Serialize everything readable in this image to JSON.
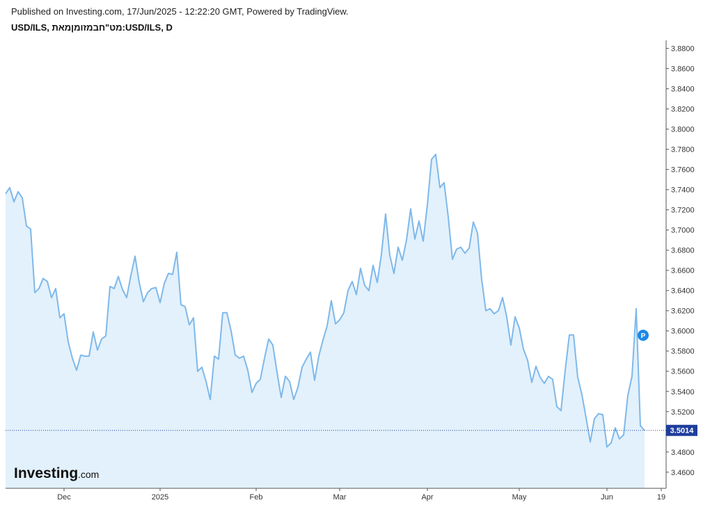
{
  "header": {
    "published": "Published on Investing.com, 17/Jun/2025 - 12:22:20 GMT, Powered by TradingView.",
    "symbol": "USD/ILS, מט\"חבמזומןמאת:USD/ILS, D"
  },
  "logo": {
    "main": "Investing",
    "suffix": ".com"
  },
  "colors": {
    "line": "#7fb8ea",
    "fill": "#e2f1fb",
    "price_line": "#1f3e9c",
    "badge": "#1f3e9c",
    "marker": "#1e88e5"
  },
  "marker": {
    "label": "P"
  },
  "chart_data": {
    "type": "area",
    "title": "USD/ILS, מט\"חבמזומןמאת:USD/ILS, D",
    "xlabel": "",
    "ylabel": "",
    "ylim": [
      3.444,
      3.888
    ],
    "y_ticks": [
      "3.8800",
      "3.8600",
      "3.8400",
      "3.8200",
      "3.8000",
      "3.7800",
      "3.7600",
      "3.7400",
      "3.7200",
      "3.7000",
      "3.6800",
      "3.6600",
      "3.6400",
      "3.6200",
      "3.6000",
      "3.5800",
      "3.5600",
      "3.5400",
      "3.5200",
      "3.4800",
      "3.4600"
    ],
    "x_ticks": [
      {
        "label": "Dec",
        "index": 14
      },
      {
        "label": "2025",
        "index": 37
      },
      {
        "label": "Feb",
        "index": 60
      },
      {
        "label": "Mar",
        "index": 80
      },
      {
        "label": "Apr",
        "index": 101
      },
      {
        "label": "May",
        "index": 123
      },
      {
        "label": "Jun",
        "index": 144
      },
      {
        "label": "19",
        "index": 157
      }
    ],
    "last_price": "3.5014",
    "last_value": 3.5014,
    "marker_index": 153,
    "grid": false,
    "values": [
      3.736,
      3.742,
      3.728,
      3.738,
      3.732,
      3.704,
      3.701,
      3.638,
      3.642,
      3.652,
      3.649,
      3.633,
      3.642,
      3.613,
      3.617,
      3.589,
      3.573,
      3.561,
      3.576,
      3.575,
      3.575,
      3.599,
      3.581,
      3.592,
      3.595,
      3.644,
      3.642,
      3.654,
      3.641,
      3.633,
      3.655,
      3.674,
      3.648,
      3.629,
      3.638,
      3.642,
      3.643,
      3.628,
      3.647,
      3.657,
      3.656,
      3.678,
      3.626,
      3.624,
      3.606,
      3.613,
      3.56,
      3.564,
      3.55,
      3.532,
      3.575,
      3.572,
      3.618,
      3.618,
      3.6,
      3.576,
      3.573,
      3.575,
      3.561,
      3.539,
      3.548,
      3.552,
      3.573,
      3.592,
      3.586,
      3.559,
      3.534,
      3.555,
      3.55,
      3.532,
      3.544,
      3.564,
      3.572,
      3.579,
      3.551,
      3.575,
      3.591,
      3.605,
      3.63,
      3.607,
      3.611,
      3.618,
      3.64,
      3.649,
      3.636,
      3.662,
      3.645,
      3.64,
      3.665,
      3.648,
      3.676,
      3.716,
      3.675,
      3.657,
      3.683,
      3.67,
      3.69,
      3.721,
      3.691,
      3.709,
      3.689,
      3.725,
      3.77,
      3.775,
      3.742,
      3.747,
      3.713,
      3.671,
      3.681,
      3.683,
      3.677,
      3.682,
      3.708,
      3.697,
      3.651,
      3.62,
      3.622,
      3.617,
      3.62,
      3.633,
      3.614,
      3.586,
      3.614,
      3.603,
      3.582,
      3.571,
      3.549,
      3.565,
      3.554,
      3.548,
      3.555,
      3.552,
      3.525,
      3.521,
      3.561,
      3.596,
      3.596,
      3.554,
      3.537,
      3.514,
      3.49,
      3.513,
      3.518,
      3.517,
      3.485,
      3.489,
      3.504,
      3.493,
      3.497,
      3.536,
      3.555,
      3.622,
      3.506,
      3.5014
    ]
  }
}
